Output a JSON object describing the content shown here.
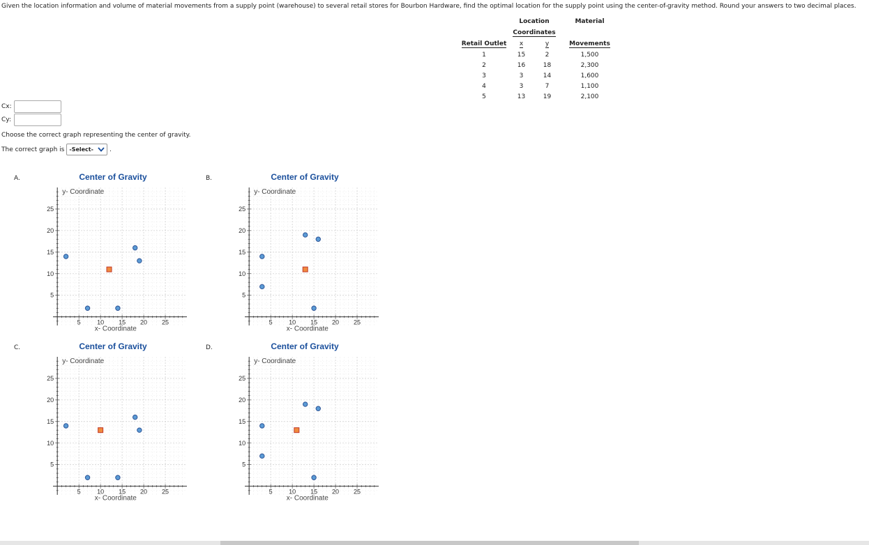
{
  "question": "Given the location information and volume of material movements from a supply point (warehouse) to several retail stores for Bourbon Hardware, find the optimal location for the supply point using the center-of-gravity method. Round your answers to two decimal places.",
  "table": {
    "header_location": "Location",
    "header_coordinates": "Coordinates",
    "header_material": "Material",
    "header_movements": "Movements",
    "header_outlet": "Retail Outlet",
    "header_x": "x",
    "header_y": "y",
    "rows": [
      {
        "outlet": "1",
        "x": "15",
        "y": "2",
        "movement": "1,500"
      },
      {
        "outlet": "2",
        "x": "16",
        "y": "18",
        "movement": "2,300"
      },
      {
        "outlet": "3",
        "x": "3",
        "y": "14",
        "movement": "1,600"
      },
      {
        "outlet": "4",
        "x": "3",
        "y": "7",
        "movement": "1,100"
      },
      {
        "outlet": "5",
        "x": "13",
        "y": "19",
        "movement": "2,100"
      }
    ]
  },
  "inputs": {
    "cx_label": "Cx:",
    "cy_label": "Cy:",
    "cx_value": "",
    "cy_value": ""
  },
  "choose_text": "Choose the correct graph representing the center of gravity.",
  "graph_sentence_prefix": "The correct graph is",
  "graph_select_value": "-Select-",
  "graph_sentence_suffix": ".",
  "colors": {
    "title": "#1a4f9c",
    "point_fill": "#5b9bd5",
    "point_stroke": "#2f5597",
    "center_fill": "#f08a3e",
    "center_stroke": "#c0392b",
    "grid": "#cccccc"
  },
  "icons": {
    "select_arrow": "chevron-down-icon",
    "data_point": "circle-marker",
    "center_point": "square-marker"
  },
  "chart_data": [
    {
      "type": "scatter",
      "option": "A.",
      "title": "Center of Gravity",
      "xlabel": "x- Coordinate",
      "ylabel": "y- Coordinate",
      "xlim": [
        -1,
        30
      ],
      "ylim": [
        -2,
        30
      ],
      "x_ticks": [
        "5",
        "10",
        "15",
        "20",
        "25"
      ],
      "y_ticks": [
        "5",
        "10",
        "15",
        "20",
        "25"
      ],
      "grid": true,
      "points": [
        [
          2,
          14
        ],
        [
          7,
          2
        ],
        [
          14,
          2
        ],
        [
          18,
          16
        ],
        [
          19,
          13
        ]
      ],
      "center": [
        12,
        11
      ]
    },
    {
      "type": "scatter",
      "option": "B.",
      "title": "Center of Gravity",
      "xlabel": "x- Coordinate",
      "ylabel": "y- Coordinate",
      "xlim": [
        -1,
        30
      ],
      "ylim": [
        -2,
        30
      ],
      "x_ticks": [
        "5",
        "10",
        "15",
        "20",
        "25"
      ],
      "y_ticks": [
        "5",
        "10",
        "15",
        "20",
        "25"
      ],
      "grid": true,
      "points": [
        [
          3,
          14
        ],
        [
          3,
          7
        ],
        [
          13,
          19
        ],
        [
          16,
          18
        ],
        [
          15,
          2
        ]
      ],
      "center": [
        13,
        11
      ]
    },
    {
      "type": "scatter",
      "option": "C.",
      "title": "Center of Gravity",
      "xlabel": "x- Coordinate",
      "ylabel": "y- Coordinate",
      "xlim": [
        -1,
        30
      ],
      "ylim": [
        -2,
        30
      ],
      "x_ticks": [
        "5",
        "10",
        "15",
        "20",
        "25"
      ],
      "y_ticks": [
        "5",
        "10",
        "15",
        "20",
        "25"
      ],
      "grid": true,
      "points": [
        [
          2,
          14
        ],
        [
          7,
          2
        ],
        [
          14,
          2
        ],
        [
          18,
          16
        ],
        [
          19,
          13
        ]
      ],
      "center": [
        10,
        13
      ]
    },
    {
      "type": "scatter",
      "option": "D.",
      "title": "Center of Gravity",
      "xlabel": "x- Coordinate",
      "ylabel": "y- Coordinate",
      "xlim": [
        -1,
        30
      ],
      "ylim": [
        -2,
        30
      ],
      "x_ticks": [
        "5",
        "10",
        "15",
        "20",
        "25"
      ],
      "y_ticks": [
        "5",
        "10",
        "15",
        "20",
        "25"
      ],
      "grid": true,
      "points": [
        [
          3,
          14
        ],
        [
          3,
          7
        ],
        [
          13,
          19
        ],
        [
          16,
          18
        ],
        [
          15,
          2
        ]
      ],
      "center": [
        11,
        13
      ]
    }
  ]
}
